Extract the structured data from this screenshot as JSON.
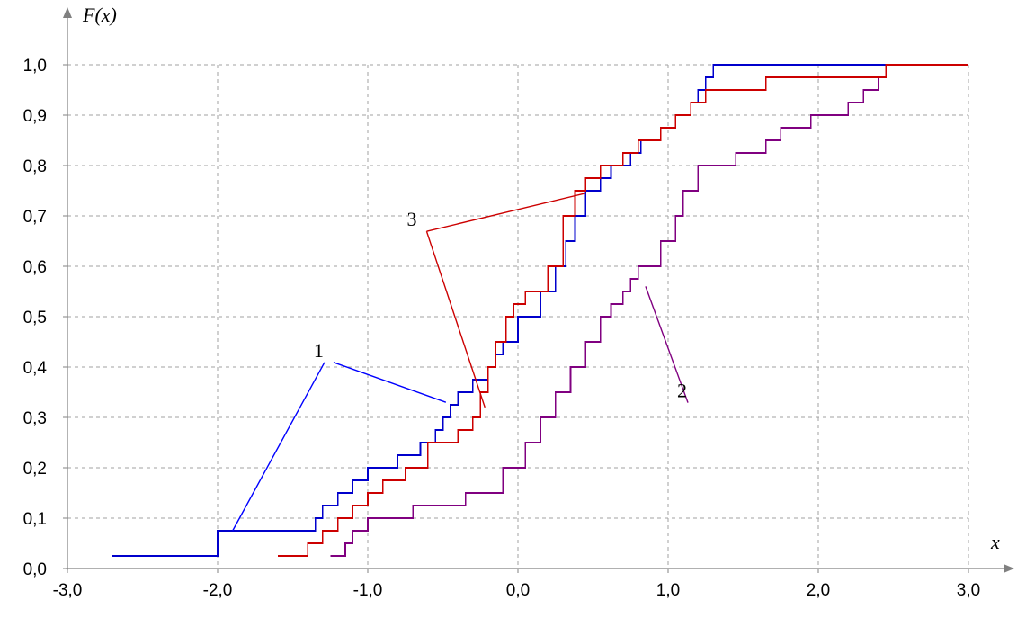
{
  "chart_data": {
    "type": "line",
    "step": true,
    "title": "",
    "xlabel": "x",
    "ylabel": "F(x)",
    "xlim": [
      -3.0,
      3.0
    ],
    "ylim": [
      0.0,
      1.0
    ],
    "grid": true,
    "x_ticks": [
      "-3,0",
      "-2,0",
      "-1,0",
      "0,0",
      "1,0",
      "2,0",
      "3,0"
    ],
    "y_ticks": [
      "0,0",
      "0,1",
      "0,2",
      "0,3",
      "0,4",
      "0,5",
      "0,6",
      "0,7",
      "0,8",
      "0,9",
      "1,0"
    ],
    "series": [
      {
        "label": "1",
        "color": "#0000cc",
        "x": [
          -2.7,
          -2.0,
          -1.95,
          -1.35,
          -1.3,
          -1.2,
          -1.1,
          -1.0,
          -0.95,
          -0.8,
          -0.65,
          -0.55,
          -0.5,
          -0.45,
          -0.4,
          -0.3,
          -0.2,
          -0.15,
          -0.1,
          0.0,
          0.15,
          0.25,
          0.32,
          0.38,
          0.45,
          0.55,
          0.62,
          0.75,
          0.82,
          0.88,
          0.95,
          1.05,
          1.15,
          1.2,
          1.25,
          1.3,
          1.4,
          3.0
        ],
        "y": [
          0.025,
          0.075,
          0.075,
          0.1,
          0.125,
          0.15,
          0.175,
          0.2,
          0.2,
          0.225,
          0.25,
          0.275,
          0.3,
          0.325,
          0.35,
          0.375,
          0.4,
          0.425,
          0.45,
          0.5,
          0.55,
          0.6,
          0.65,
          0.7,
          0.75,
          0.775,
          0.8,
          0.825,
          0.85,
          0.85,
          0.875,
          0.9,
          0.925,
          0.95,
          0.975,
          1.0,
          1.0,
          1.0
        ]
      },
      {
        "label": "2",
        "color": "#800080",
        "x": [
          -1.25,
          -1.15,
          -1.1,
          -1.0,
          -0.7,
          -0.35,
          -0.1,
          0.05,
          0.15,
          0.25,
          0.35,
          0.45,
          0.55,
          0.62,
          0.7,
          0.75,
          0.8,
          0.85,
          0.95,
          1.05,
          1.1,
          1.2,
          1.25,
          1.45,
          1.65,
          1.75,
          1.95,
          2.2,
          2.3,
          2.4,
          2.45,
          2.5,
          3.0
        ],
        "y": [
          0.025,
          0.05,
          0.075,
          0.1,
          0.125,
          0.15,
          0.2,
          0.25,
          0.3,
          0.35,
          0.4,
          0.45,
          0.5,
          0.525,
          0.55,
          0.575,
          0.6,
          0.6,
          0.65,
          0.7,
          0.75,
          0.8,
          0.8,
          0.825,
          0.85,
          0.875,
          0.9,
          0.925,
          0.95,
          0.975,
          1.0,
          1.0,
          1.0
        ]
      },
      {
        "label": "3",
        "color": "#cc0000",
        "x": [
          -1.6,
          -1.4,
          -1.3,
          -1.2,
          -1.1,
          -1.0,
          -0.9,
          -0.75,
          -0.6,
          -0.4,
          -0.3,
          -0.25,
          -0.2,
          -0.15,
          -0.08,
          -0.03,
          0.05,
          0.2,
          0.3,
          0.38,
          0.45,
          0.55,
          0.65,
          0.7,
          0.8,
          0.95,
          1.05,
          1.15,
          1.25,
          1.5,
          1.65,
          1.95,
          2.4,
          2.45,
          3.0
        ],
        "y": [
          0.025,
          0.05,
          0.075,
          0.1,
          0.125,
          0.15,
          0.175,
          0.2,
          0.25,
          0.275,
          0.3,
          0.35,
          0.4,
          0.45,
          0.5,
          0.525,
          0.55,
          0.6,
          0.7,
          0.75,
          0.775,
          0.8,
          0.8,
          0.825,
          0.85,
          0.875,
          0.9,
          0.925,
          0.95,
          0.95,
          0.975,
          0.975,
          0.975,
          1.0,
          1.0
        ]
      }
    ],
    "annotations": [
      {
        "text": "1",
        "color": "#0000ff",
        "lx": -1.3,
        "ly": 0.42,
        "targets": [
          [
            -1.9,
            0.075
          ],
          [
            -0.48,
            0.33
          ]
        ]
      },
      {
        "text": "2",
        "color": "#800080",
        "lx": 1.12,
        "ly": 0.34,
        "targets": [
          [
            0.85,
            0.56
          ]
        ]
      },
      {
        "text": "3",
        "color": "#cc0000",
        "lx": -0.68,
        "ly": 0.68,
        "targets": [
          [
            0.45,
            0.745
          ],
          [
            -0.22,
            0.32
          ]
        ]
      }
    ]
  }
}
